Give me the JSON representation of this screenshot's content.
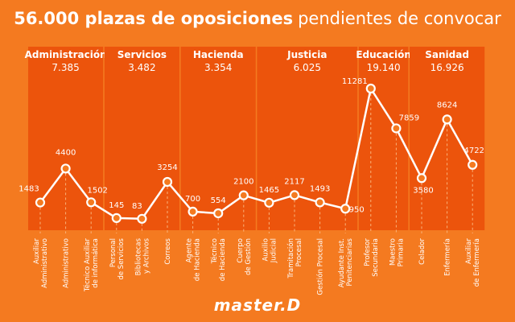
{
  "chart_data": {
    "type": "line",
    "title_bold": "56.000 plazas de oposiciones",
    "title_rest": "pendientes de convocar",
    "logo": "master.D",
    "color": "#ffffff",
    "band_color": "#ec540c",
    "groups": [
      {
        "name": "Administración",
        "total": "7.385",
        "categories": [
          "Auxiliar\nAdministrativo",
          "Administrativo",
          "Técnico Auxiliar\nde informática"
        ],
        "values": [
          1483,
          4400,
          1502
        ]
      },
      {
        "name": "Servicios",
        "total": "3.482",
        "categories": [
          "Personal\nde Servicios",
          "Bibliotecas\ny Archivos",
          "Correos"
        ],
        "values": [
          145,
          83,
          3254
        ]
      },
      {
        "name": "Hacienda",
        "total": "3.354",
        "categories": [
          "Agente\nde Hacienda",
          "Técnico\nde Hacienda",
          "Cuerpo\nde Gestión"
        ],
        "values": [
          700,
          554,
          2100
        ]
      },
      {
        "name": "Justicia",
        "total": "6.025",
        "categories": [
          "Auxilio\nJudicial",
          "Tramitación\nProcesal",
          "Gestión Procesal",
          "Ayudante Inst.\nPenitenciarias"
        ],
        "values": [
          1465,
          2117,
          1493,
          950
        ]
      },
      {
        "name": "Educación",
        "total": "19.140",
        "categories": [
          "Profesor\nSecundaria",
          "Maestro\nPrimaria"
        ],
        "values": [
          11281,
          7859
        ]
      },
      {
        "name": "Sanidad",
        "total": "16.926",
        "categories": [
          "Celador",
          "Enfermería",
          "Auxiliar\nde Enfermería"
        ],
        "values": [
          3580,
          8624,
          4722
        ]
      }
    ]
  }
}
